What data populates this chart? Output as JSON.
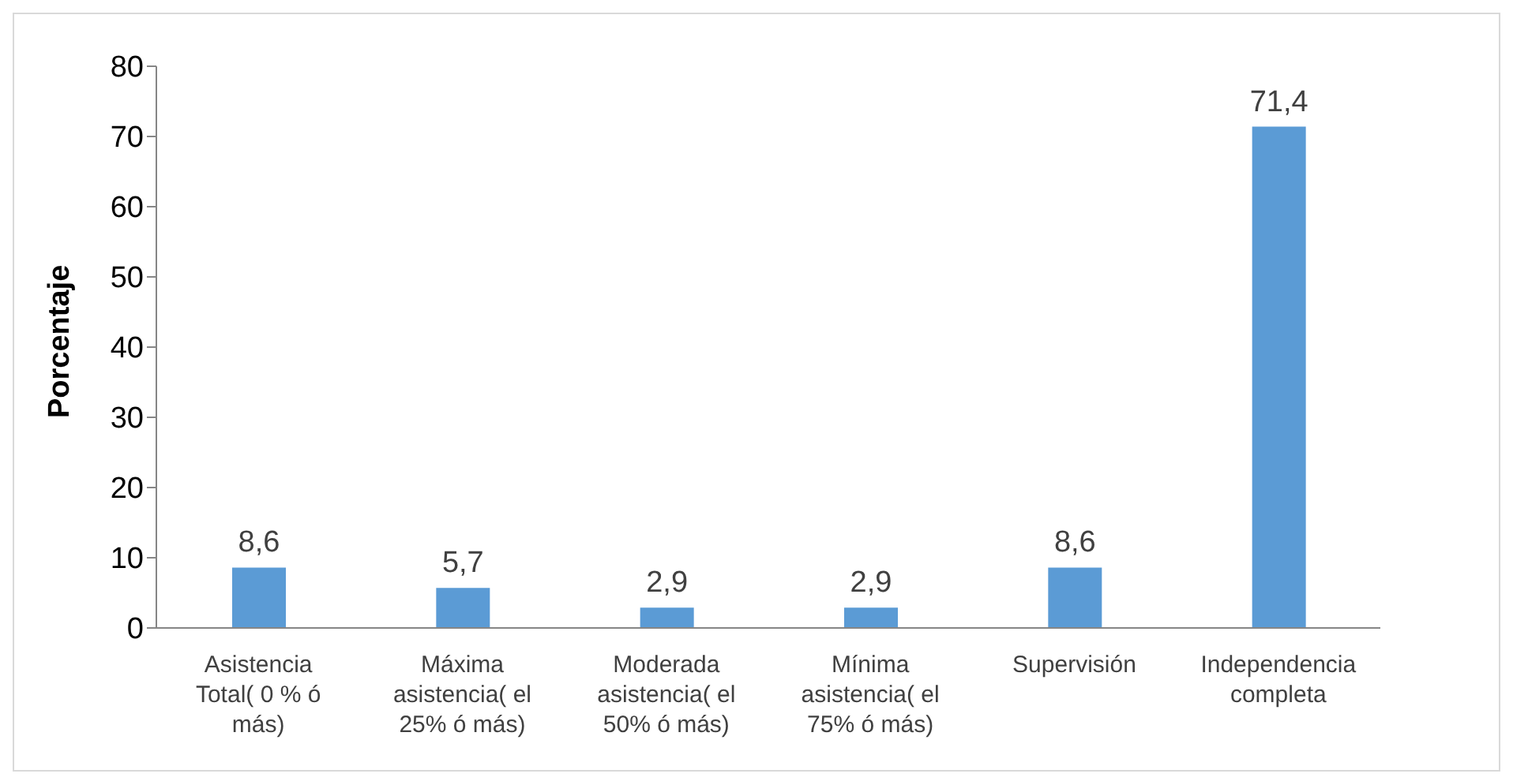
{
  "chart_data": {
    "type": "bar",
    "ylabel": "Porcentaje",
    "categories": [
      "Asistencia Total( 0 % ó más)",
      "Máxima asistencia( el 25% ó más)",
      "Moderada asistencia( el 50% ó más)",
      "Mínima asistencia( el 75% ó más)",
      "Supervisión",
      "Independencia completa"
    ],
    "values": [
      8.6,
      5.7,
      2.9,
      2.9,
      8.6,
      71.4
    ],
    "value_labels": [
      "8,6",
      "5,7",
      "2,9",
      "2,9",
      "8,6",
      "71,4"
    ],
    "color": "#5b9bd5",
    "ylim": [
      0,
      80
    ],
    "yticks": [
      0,
      10,
      20,
      30,
      40,
      50,
      60,
      70,
      80
    ],
    "grid": false
  }
}
